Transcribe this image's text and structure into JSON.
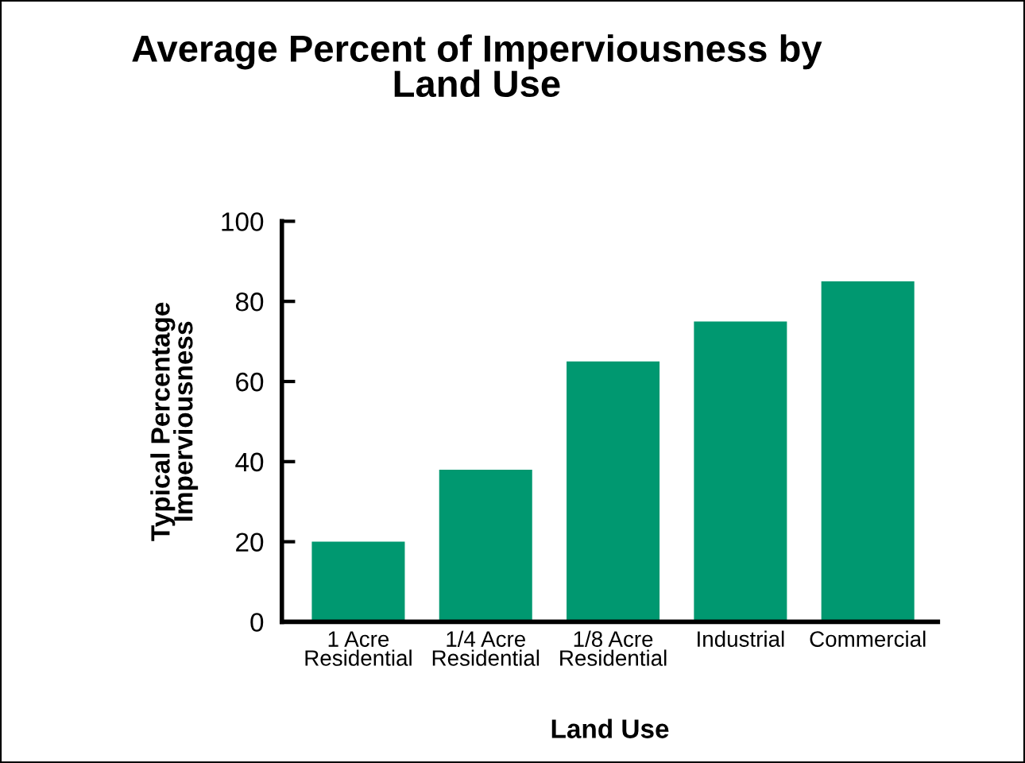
{
  "chart_data": {
    "type": "bar",
    "title": "Average Percent of Imperviousness by\nLand Use",
    "xlabel": "Land Use",
    "ylabel": "Typical Percentage\nImperviousness",
    "categories": [
      "1 Acre\nResidential",
      "1/4 Acre\nResidential",
      "1/8 Acre\nResidential",
      "Industrial",
      "Commercial"
    ],
    "values": [
      20,
      38,
      65,
      75,
      85
    ],
    "color": "#009870",
    "ylim": [
      0,
      100
    ],
    "yticks": [
      0,
      20,
      40,
      60,
      80,
      100
    ],
    "grid": false,
    "legend": false
  }
}
